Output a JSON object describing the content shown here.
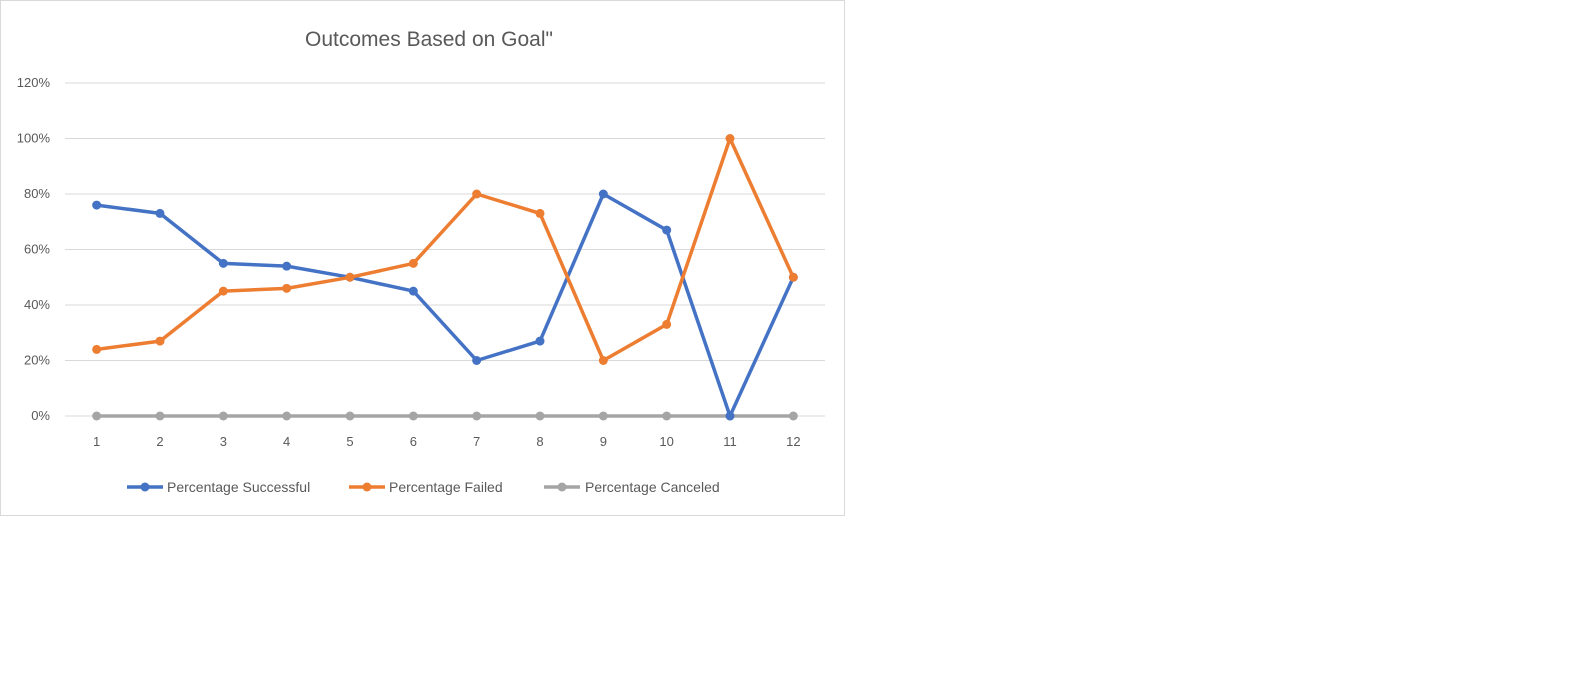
{
  "chart_data": {
    "type": "line",
    "title": "Outcomes Based on Goal\"",
    "xlabel": "",
    "ylabel": "",
    "categories": [
      "1",
      "2",
      "3",
      "4",
      "5",
      "6",
      "7",
      "8",
      "9",
      "10",
      "11",
      "12"
    ],
    "y_ticks": [
      "0%",
      "20%",
      "40%",
      "60%",
      "80%",
      "100%",
      "120%"
    ],
    "ylim": [
      0,
      1.2
    ],
    "grid": true,
    "legend_position": "bottom",
    "series": [
      {
        "name": "Percentage Successful",
        "color": "#4472c4",
        "values": [
          0.76,
          0.73,
          0.55,
          0.54,
          0.5,
          0.45,
          0.2,
          0.27,
          0.8,
          0.67,
          0.0,
          0.5
        ]
      },
      {
        "name": "Percentage Failed",
        "color": "#ed7d31",
        "values": [
          0.24,
          0.27,
          0.45,
          0.46,
          0.5,
          0.55,
          0.8,
          0.73,
          0.2,
          0.33,
          1.0,
          0.5
        ]
      },
      {
        "name": "Percentage Canceled",
        "color": "#a5a5a5",
        "values": [
          0,
          0,
          0,
          0,
          0,
          0,
          0,
          0,
          0,
          0,
          0,
          0
        ]
      }
    ]
  }
}
